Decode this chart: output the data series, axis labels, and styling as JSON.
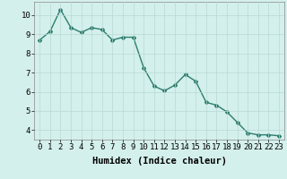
{
  "x": [
    0,
    1,
    2,
    3,
    4,
    5,
    6,
    7,
    8,
    9,
    10,
    11,
    12,
    13,
    14,
    15,
    16,
    17,
    18,
    19,
    20,
    21,
    22,
    23
  ],
  "y": [
    8.7,
    9.15,
    10.3,
    9.35,
    9.1,
    9.35,
    9.25,
    8.7,
    8.85,
    8.85,
    7.25,
    6.3,
    6.05,
    6.35,
    6.9,
    6.55,
    5.45,
    5.3,
    4.95,
    4.4,
    3.85,
    3.75,
    3.75,
    3.7
  ],
  "line_color": "#2d7d6e",
  "marker": "D",
  "marker_size": 2.0,
  "linewidth": 1.0,
  "xlabel": "Humidex (Indice chaleur)",
  "xlim": [
    -0.5,
    23.5
  ],
  "ylim": [
    3.5,
    10.7
  ],
  "yticks": [
    4,
    5,
    6,
    7,
    8,
    9,
    10
  ],
  "xticks": [
    0,
    1,
    2,
    3,
    4,
    5,
    6,
    7,
    8,
    9,
    10,
    11,
    12,
    13,
    14,
    15,
    16,
    17,
    18,
    19,
    20,
    21,
    22,
    23
  ],
  "xtick_labels": [
    "0",
    "1",
    "2",
    "3",
    "4",
    "5",
    "6",
    "7",
    "8",
    "9",
    "10",
    "11",
    "12",
    "13",
    "14",
    "15",
    "16",
    "17",
    "18",
    "19",
    "20",
    "21",
    "22",
    "23"
  ],
  "bg_color": "#d4f0ec",
  "grid_color": "#b8d8d4",
  "xlabel_fontsize": 7.5,
  "tick_fontsize": 6.5
}
